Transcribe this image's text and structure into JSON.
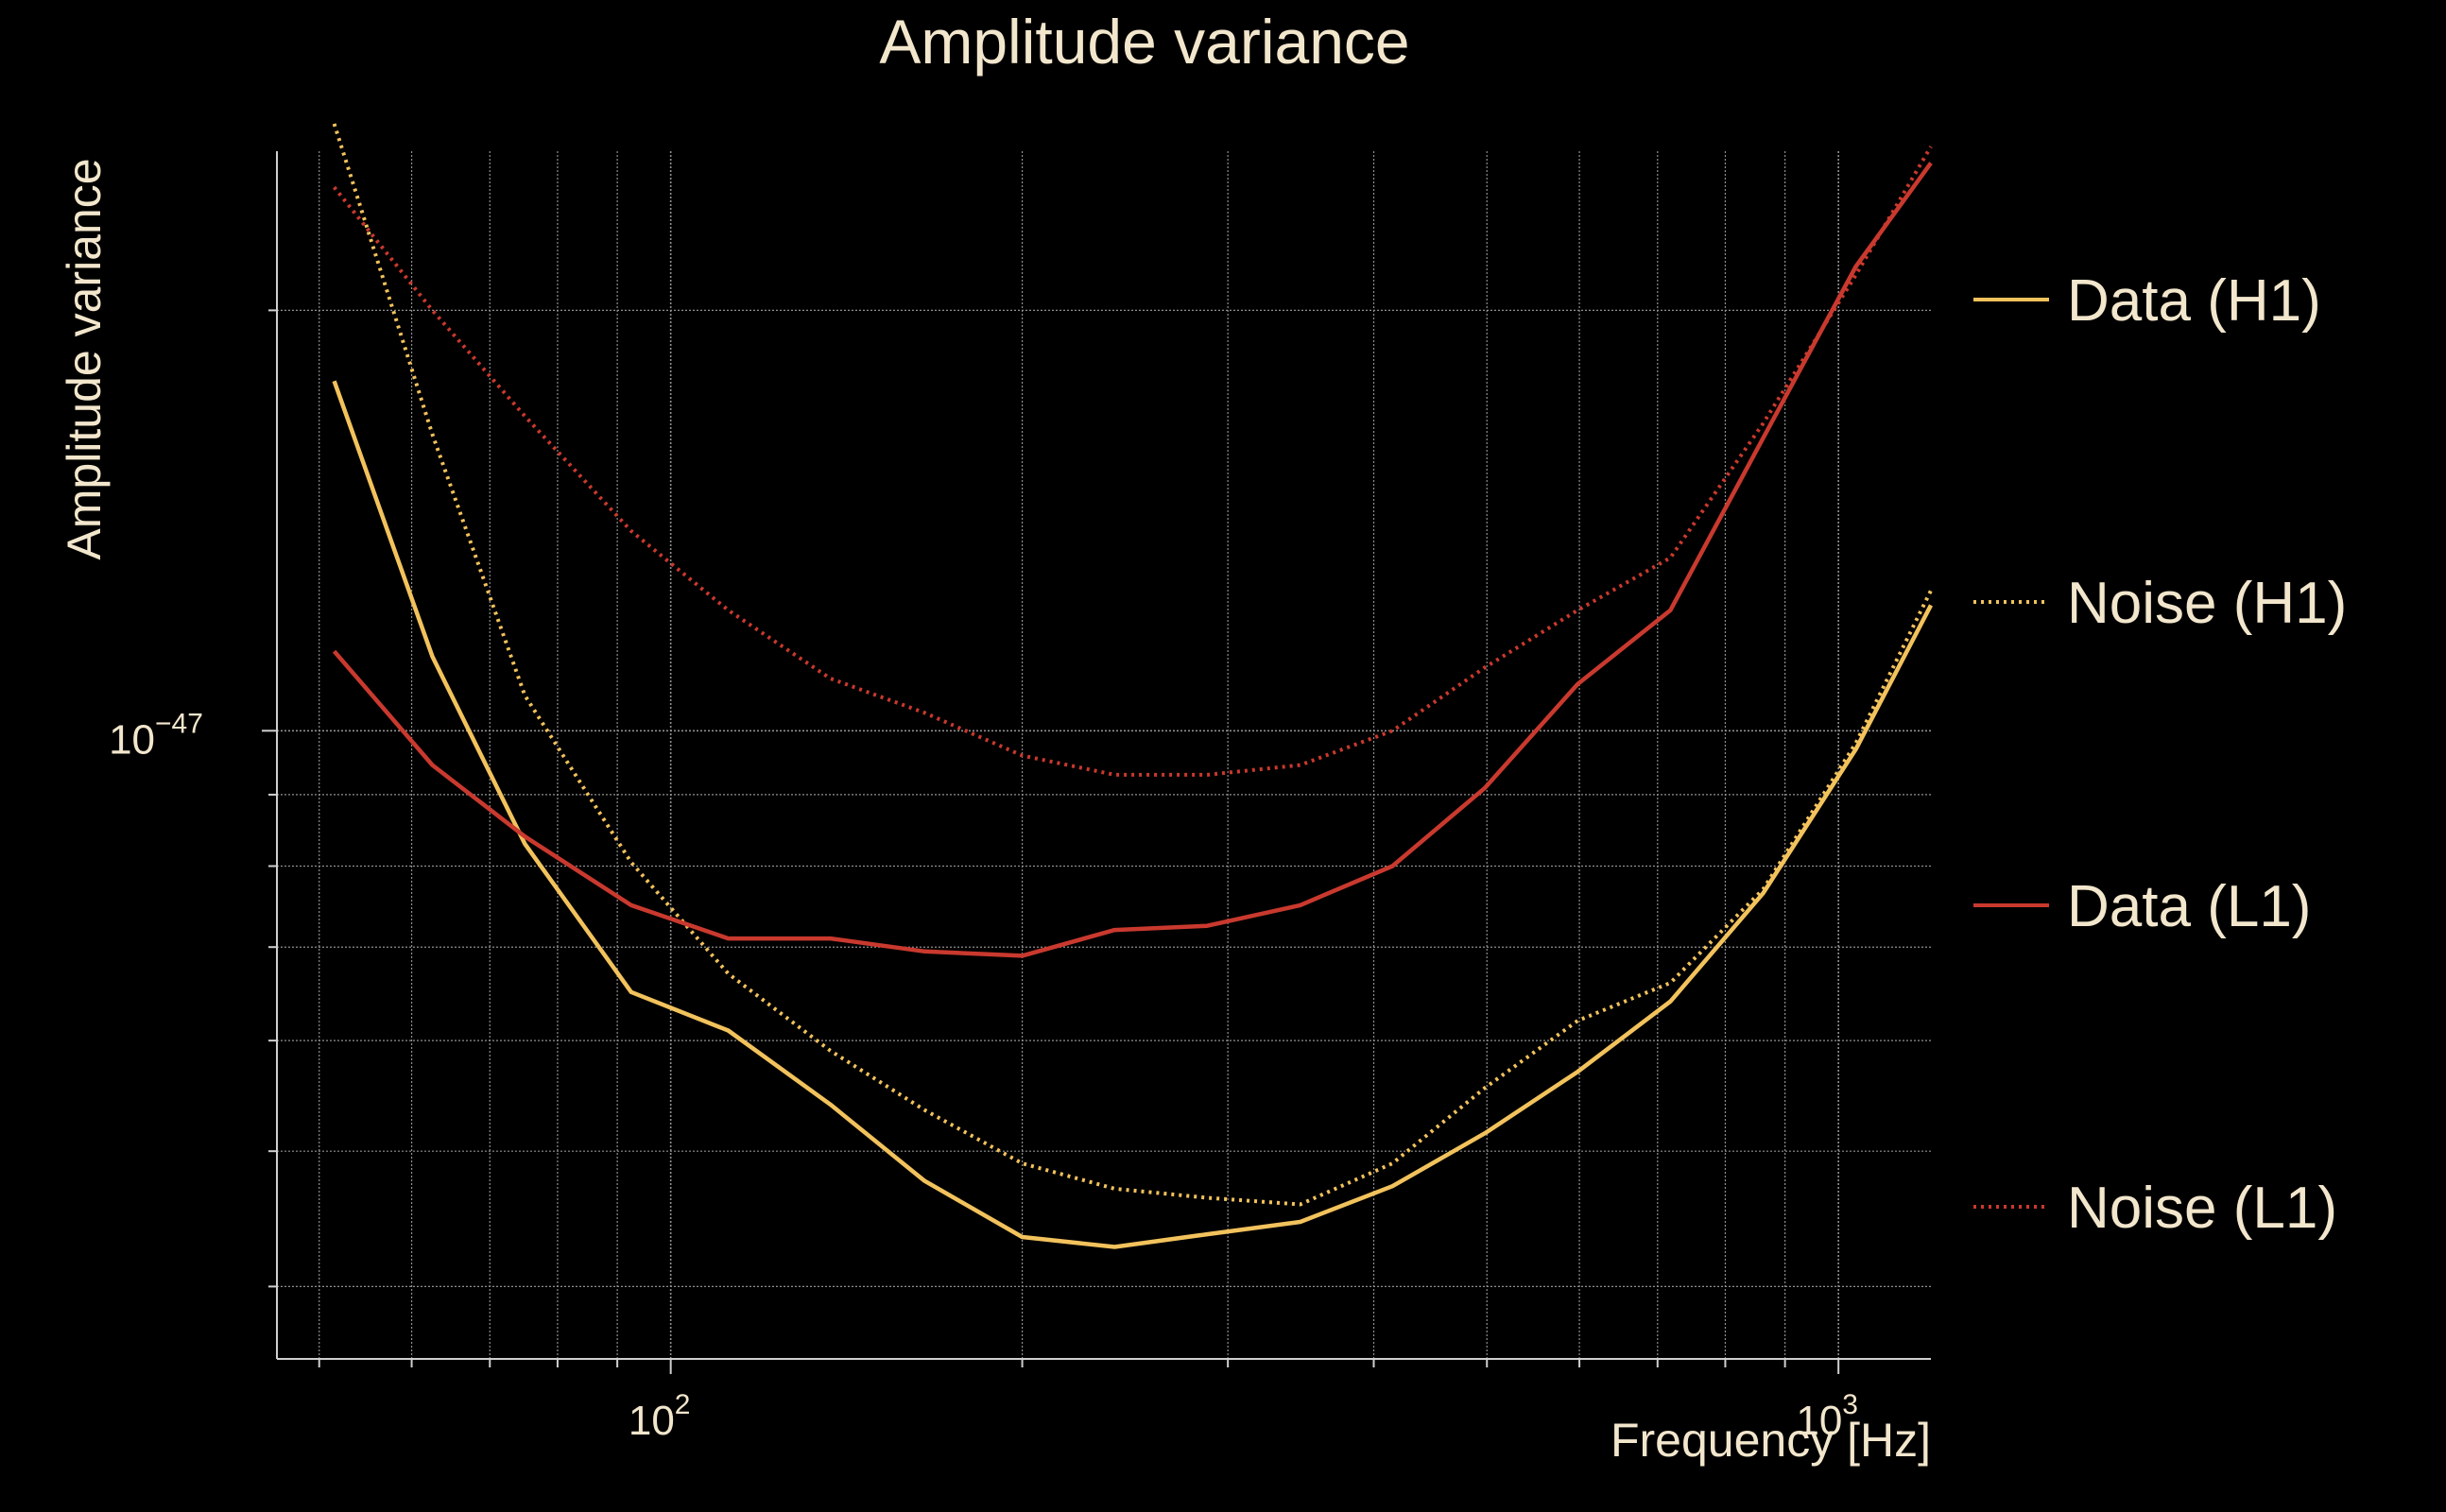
{
  "chart_data": {
    "type": "line",
    "title": "Amplitude variance",
    "xlabel": "Frequency [Hz]",
    "ylabel": "Amplitude variance",
    "xscale": "log",
    "yscale": "log",
    "xlim": [
      46,
      1200
    ],
    "ylim": [
      3.55e-48,
      2.6e-47
    ],
    "x_ticklabels": [
      {
        "value": 100,
        "base": "10",
        "exp": "2"
      },
      {
        "value": 1000,
        "base": "10",
        "exp": "3"
      }
    ],
    "y_ticklabels": [
      {
        "value": 1e-47,
        "base": "10",
        "exp": "−47"
      }
    ],
    "grid": true,
    "legend_position": "right",
    "colors": {
      "background": "#000000",
      "text": "#f2e6cc",
      "grid": "#8f8f8f",
      "axis": "#cfcfcf",
      "h1": "#f2c25c",
      "l1": "#c9392e"
    },
    "series": [
      {
        "name": "Data (H1)",
        "color": "#f2c25c",
        "dash": "solid",
        "x": [
          51.5,
          62.5,
          75,
          92.5,
          112,
          137,
          165,
          200,
          240,
          288,
          346,
          415,
          498,
          598,
          718,
          862,
          1035,
          1200
        ],
        "y": [
          1.78e-47,
          1.13e-47,
          8.3e-48,
          6.5e-48,
          6.1e-48,
          5.4e-48,
          4.76e-48,
          4.34e-48,
          4.27e-48,
          4.36e-48,
          4.45e-48,
          4.72e-48,
          5.15e-48,
          5.7e-48,
          6.4e-48,
          7.65e-48,
          9.7e-48,
          1.23e-47
        ]
      },
      {
        "name": "Noise (H1)",
        "color": "#f2c25c",
        "dash": "dotted",
        "x": [
          51.5,
          62.5,
          75,
          92.5,
          112,
          137,
          165,
          200,
          240,
          288,
          346,
          415,
          498,
          598,
          718,
          862,
          1035,
          1200
        ],
        "y": [
          2.72e-47,
          1.63e-47,
          1.06e-47,
          8.05e-48,
          6.7e-48,
          5.9e-48,
          5.35e-48,
          4.9e-48,
          4.7e-48,
          4.63e-48,
          4.58e-48,
          4.9e-48,
          5.55e-48,
          6.2e-48,
          6.6e-48,
          7.7e-48,
          9.8e-48,
          1.26e-47
        ]
      },
      {
        "name": "Data (L1)",
        "color": "#c9392e",
        "dash": "solid",
        "x": [
          51.5,
          62.5,
          75,
          92.5,
          112,
          137,
          165,
          200,
          240,
          288,
          346,
          415,
          498,
          598,
          718,
          862,
          1035,
          1200
        ],
        "y": [
          1.14e-47,
          9.45e-48,
          8.4e-48,
          7.5e-48,
          7.1e-48,
          7.1e-48,
          6.95e-48,
          6.9e-48,
          7.2e-48,
          7.25e-48,
          7.5e-48,
          8e-48,
          9.1e-48,
          1.08e-47,
          1.22e-47,
          1.62e-47,
          2.15e-47,
          2.55e-47
        ]
      },
      {
        "name": "Noise (L1)",
        "color": "#c9392e",
        "dash": "dotted",
        "x": [
          51.5,
          62.5,
          75,
          92.5,
          112,
          137,
          165,
          200,
          240,
          288,
          346,
          415,
          498,
          598,
          718,
          862,
          1035,
          1200
        ],
        "y": [
          2.45e-47,
          2e-47,
          1.68e-47,
          1.39e-47,
          1.22e-47,
          1.09e-47,
          1.03e-47,
          9.6e-48,
          9.3e-48,
          9.3e-48,
          9.45e-48,
          1e-47,
          1.11e-47,
          1.22e-47,
          1.33e-47,
          1.66e-47,
          2.12e-47,
          2.62e-47
        ]
      }
    ]
  }
}
